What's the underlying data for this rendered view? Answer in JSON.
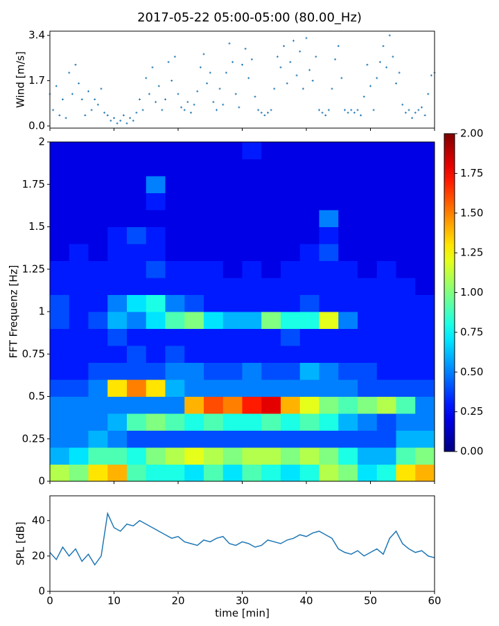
{
  "title": "2017-05-22 05:00-05:00 (80.00_Hz)",
  "chart_data": [
    {
      "type": "scatter",
      "ylabel": "Wind [m/s]",
      "color": "#1f77b4",
      "xlim": [
        0,
        60
      ],
      "ylim": [
        -0.08,
        3.56
      ],
      "yticks": [
        {
          "value": 0,
          "label": "0.0"
        },
        1.7,
        3.4
      ],
      "x": [
        0,
        0.5,
        1,
        1.5,
        2,
        2.5,
        3,
        3.5,
        4,
        4.5,
        5,
        5.5,
        6,
        6.5,
        7,
        7.5,
        8,
        8.5,
        9,
        9.5,
        10,
        10.5,
        11,
        11.5,
        12,
        12.5,
        13,
        13.5,
        14,
        14.5,
        15,
        15.5,
        16,
        16.5,
        17,
        17.5,
        18,
        18.5,
        19,
        19.5,
        20,
        20.5,
        21,
        21.5,
        22,
        22.5,
        23,
        23.5,
        24,
        24.5,
        25,
        25.5,
        26,
        26.5,
        27,
        27.5,
        28,
        28.5,
        29,
        29.5,
        30,
        30.5,
        31,
        31.5,
        32,
        32.5,
        33,
        33.5,
        34,
        34.5,
        35,
        35.5,
        36,
        36.5,
        37,
        37.5,
        38,
        38.5,
        39,
        39.5,
        40,
        40.5,
        41,
        41.5,
        42,
        42.5,
        43,
        43.5,
        44,
        44.5,
        45,
        45.5,
        46,
        46.5,
        47,
        47.5,
        48,
        48.5,
        49,
        49.5,
        50,
        50.5,
        51,
        51.5,
        52,
        52.5,
        53,
        53.5,
        54,
        54.5,
        55,
        55.5,
        56,
        56.5,
        57,
        57.5,
        58,
        58.5,
        59,
        59.5,
        60
      ],
      "values": [
        1.2,
        0.6,
        1.5,
        0.4,
        1.0,
        0.3,
        2.0,
        1.2,
        2.3,
        1.6,
        1.0,
        0.4,
        1.3,
        0.6,
        1.0,
        0.8,
        1.4,
        0.5,
        0.4,
        0.2,
        0.3,
        0.1,
        0.2,
        0.4,
        0.1,
        0.3,
        0.2,
        0.5,
        1.0,
        0.6,
        1.8,
        1.2,
        2.2,
        0.9,
        1.5,
        0.6,
        1.0,
        2.4,
        1.7,
        2.6,
        1.2,
        0.7,
        0.6,
        0.9,
        0.5,
        0.8,
        1.3,
        2.2,
        2.7,
        1.6,
        2.0,
        0.9,
        0.6,
        1.4,
        0.8,
        2.0,
        3.1,
        2.4,
        1.2,
        0.7,
        2.3,
        2.9,
        1.8,
        2.5,
        1.1,
        0.6,
        0.5,
        0.4,
        0.5,
        0.6,
        1.4,
        2.6,
        2.2,
        3.0,
        1.6,
        2.4,
        3.2,
        1.9,
        2.8,
        1.4,
        3.3,
        2.1,
        1.7,
        2.6,
        0.6,
        0.5,
        0.4,
        0.6,
        1.4,
        2.5,
        3.0,
        1.8,
        0.6,
        0.5,
        0.6,
        0.5,
        0.6,
        0.4,
        1.1,
        2.3,
        1.5,
        0.6,
        1.8,
        2.4,
        3.0,
        2.2,
        3.4,
        2.6,
        1.6,
        2.0,
        0.8,
        0.5,
        0.6,
        0.3,
        0.5,
        0.6,
        0.7,
        0.4,
        1.2,
        1.9,
        2.0
      ]
    },
    {
      "type": "heatmap",
      "ylabel": "FFT Frequenz [Hz]",
      "colormap": "jet",
      "xlim": [
        0,
        60
      ],
      "ylim": [
        0,
        2
      ],
      "yticks": [
        0,
        0.25,
        0.5,
        0.75,
        1,
        1.25,
        1.5,
        1.75,
        2
      ],
      "clim": [
        0,
        2
      ],
      "cticks": [
        {
          "value": 0,
          "label": "0.00"
        },
        {
          "value": 0.25,
          "label": "0.25"
        },
        {
          "value": 0.5,
          "label": "0.50"
        },
        {
          "value": 0.75,
          "label": "0.75"
        },
        {
          "value": 1,
          "label": "1.00"
        },
        {
          "value": 1.25,
          "label": "1.25"
        },
        {
          "value": 1.5,
          "label": "1.50"
        },
        {
          "value": 1.75,
          "label": "1.75"
        },
        {
          "value": 2,
          "label": "2.00"
        }
      ],
      "z": [
        [
          1.1,
          1.0,
          1.3,
          1.4,
          0.9,
          0.8,
          0.8,
          0.7,
          0.9,
          0.7,
          0.9,
          0.8,
          0.7,
          0.8,
          1.1,
          1.0,
          0.7,
          0.8,
          1.3,
          1.4
        ],
        [
          0.6,
          0.7,
          0.9,
          0.9,
          0.8,
          1.0,
          1.1,
          1.2,
          1.1,
          1.0,
          1.1,
          1.1,
          1.0,
          1.1,
          1.0,
          0.8,
          0.6,
          0.6,
          0.9,
          1.0
        ],
        [
          0.5,
          0.5,
          0.6,
          0.5,
          0.4,
          0.4,
          0.4,
          0.4,
          0.4,
          0.4,
          0.4,
          0.4,
          0.4,
          0.4,
          0.4,
          0.4,
          0.4,
          0.4,
          0.6,
          0.6
        ],
        [
          0.5,
          0.5,
          0.5,
          0.6,
          0.9,
          1.0,
          0.9,
          0.8,
          0.9,
          0.8,
          0.8,
          0.9,
          0.8,
          0.9,
          0.8,
          0.6,
          0.5,
          0.4,
          0.5,
          0.5
        ],
        [
          0.5,
          0.5,
          0.5,
          0.5,
          0.5,
          0.5,
          0.5,
          1.4,
          1.6,
          1.5,
          1.7,
          1.8,
          1.4,
          1.2,
          1.0,
          0.9,
          1.0,
          1.1,
          0.9,
          0.5
        ],
        [
          0.4,
          0.4,
          0.5,
          1.3,
          1.5,
          1.3,
          0.6,
          0.5,
          0.5,
          0.5,
          0.5,
          0.5,
          0.5,
          0.5,
          0.5,
          0.5,
          0.4,
          0.4,
          0.4,
          0.4
        ],
        [
          0.3,
          0.3,
          0.4,
          0.4,
          0.4,
          0.4,
          0.5,
          0.5,
          0.4,
          0.4,
          0.5,
          0.4,
          0.4,
          0.6,
          0.5,
          0.4,
          0.4,
          0.3,
          0.3,
          0.3
        ],
        [
          0.3,
          0.3,
          0.3,
          0.3,
          0.4,
          0.3,
          0.4,
          0.3,
          0.3,
          0.3,
          0.3,
          0.3,
          0.3,
          0.3,
          0.3,
          0.3,
          0.3,
          0.3,
          0.3,
          0.3
        ],
        [
          0.3,
          0.3,
          0.3,
          0.4,
          0.3,
          0.3,
          0.3,
          0.3,
          0.3,
          0.3,
          0.3,
          0.3,
          0.4,
          0.3,
          0.3,
          0.3,
          0.3,
          0.3,
          0.3,
          0.3
        ],
        [
          0.4,
          0.3,
          0.4,
          0.6,
          0.5,
          0.7,
          0.9,
          1.0,
          0.7,
          0.6,
          0.6,
          1.0,
          0.8,
          0.8,
          1.2,
          0.5,
          0.3,
          0.3,
          0.3,
          0.3
        ],
        [
          0.4,
          0.3,
          0.3,
          0.5,
          0.7,
          0.8,
          0.5,
          0.4,
          0.3,
          0.3,
          0.3,
          0.3,
          0.3,
          0.4,
          0.3,
          0.3,
          0.3,
          0.3,
          0.3,
          0.3
        ],
        [
          0.3,
          0.3,
          0.3,
          0.3,
          0.3,
          0.3,
          0.3,
          0.3,
          0.3,
          0.3,
          0.3,
          0.3,
          0.3,
          0.3,
          0.3,
          0.3,
          0.3,
          0.3,
          0.3,
          0.2
        ],
        [
          0.3,
          0.3,
          0.3,
          0.3,
          0.3,
          0.4,
          0.3,
          0.3,
          0.3,
          0.2,
          0.3,
          0.2,
          0.3,
          0.3,
          0.3,
          0.3,
          0.2,
          0.3,
          0.2,
          0.2
        ],
        [
          0.2,
          0.3,
          0.2,
          0.3,
          0.3,
          0.3,
          0.2,
          0.2,
          0.2,
          0.2,
          0.2,
          0.2,
          0.2,
          0.3,
          0.4,
          0.2,
          0.2,
          0.2,
          0.2,
          0.2
        ],
        [
          0.2,
          0.2,
          0.2,
          0.3,
          0.4,
          0.3,
          0.2,
          0.2,
          0.2,
          0.2,
          0.2,
          0.2,
          0.2,
          0.2,
          0.3,
          0.2,
          0.2,
          0.2,
          0.2,
          0.2
        ],
        [
          0.2,
          0.2,
          0.2,
          0.2,
          0.2,
          0.2,
          0.2,
          0.2,
          0.2,
          0.2,
          0.2,
          0.2,
          0.2,
          0.2,
          0.5,
          0.2,
          0.2,
          0.2,
          0.2,
          0.2
        ],
        [
          0.2,
          0.2,
          0.2,
          0.2,
          0.2,
          0.3,
          0.2,
          0.2,
          0.2,
          0.2,
          0.2,
          0.2,
          0.2,
          0.2,
          0.2,
          0.2,
          0.2,
          0.2,
          0.2,
          0.2
        ],
        [
          0.2,
          0.2,
          0.2,
          0.2,
          0.2,
          0.5,
          0.2,
          0.2,
          0.2,
          0.2,
          0.2,
          0.2,
          0.2,
          0.2,
          0.2,
          0.2,
          0.2,
          0.2,
          0.2,
          0.2
        ],
        [
          0.2,
          0.2,
          0.2,
          0.2,
          0.2,
          0.2,
          0.2,
          0.2,
          0.2,
          0.2,
          0.2,
          0.2,
          0.2,
          0.2,
          0.2,
          0.2,
          0.2,
          0.2,
          0.2,
          0.2
        ],
        [
          0.2,
          0.2,
          0.2,
          0.2,
          0.2,
          0.2,
          0.2,
          0.2,
          0.2,
          0.2,
          0.3,
          0.2,
          0.2,
          0.2,
          0.2,
          0.2,
          0.2,
          0.2,
          0.2,
          0.2
        ]
      ]
    },
    {
      "type": "line",
      "ylabel": "SPL [dB]",
      "xlabel": "time [min]",
      "color": "#1f77b4",
      "xlim": [
        0,
        60
      ],
      "ylim": [
        0,
        54
      ],
      "xticks": [
        0,
        10,
        20,
        30,
        40,
        50,
        60
      ],
      "yticks": [
        0,
        20,
        40
      ],
      "x": [
        0,
        1,
        2,
        3,
        4,
        5,
        6,
        7,
        8,
        9,
        10,
        11,
        12,
        13,
        14,
        15,
        16,
        17,
        18,
        19,
        20,
        21,
        22,
        23,
        24,
        25,
        26,
        27,
        28,
        29,
        30,
        31,
        32,
        33,
        34,
        35,
        36,
        37,
        38,
        39,
        40,
        41,
        42,
        43,
        44,
        45,
        46,
        47,
        48,
        49,
        50,
        51,
        52,
        53,
        54,
        55,
        56,
        57,
        58,
        59,
        60
      ],
      "values": [
        22,
        18,
        25,
        20,
        24,
        17,
        21,
        15,
        20,
        44,
        36,
        34,
        38,
        37,
        40,
        38,
        36,
        34,
        32,
        30,
        31,
        28,
        27,
        26,
        29,
        28,
        30,
        31,
        27,
        26,
        28,
        27,
        25,
        26,
        29,
        28,
        27,
        29,
        30,
        32,
        31,
        33,
        34,
        32,
        30,
        24,
        22,
        21,
        23,
        20,
        22,
        24,
        21,
        30,
        34,
        27,
        24,
        22,
        23,
        20,
        19
      ]
    }
  ]
}
